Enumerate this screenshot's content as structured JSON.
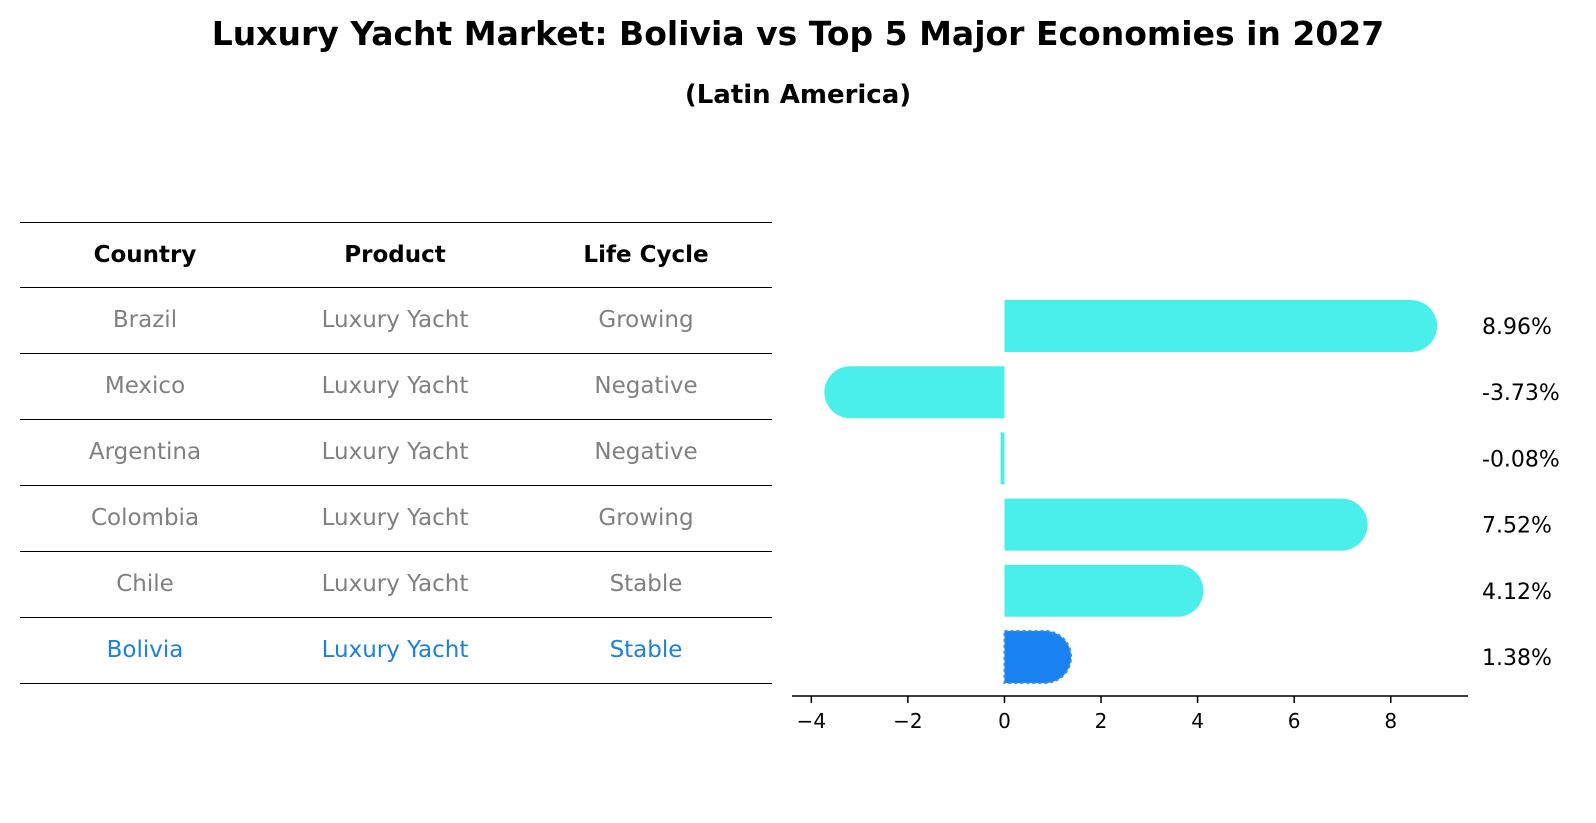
{
  "title": "Luxury Yacht Market: Bolivia vs Top 5 Major Economies in 2027",
  "subtitle": "(Latin America)",
  "table": {
    "headers": [
      "Country",
      "Product",
      "Life Cycle"
    ],
    "rows": [
      [
        "Brazil",
        "Luxury Yacht",
        "Growing"
      ],
      [
        "Mexico",
        "Luxury Yacht",
        "Negative"
      ],
      [
        "Argentina",
        "Luxury Yacht",
        "Negative"
      ],
      [
        "Colombia",
        "Luxury Yacht",
        "Growing"
      ],
      [
        "Chile",
        "Luxury Yacht",
        "Stable"
      ],
      [
        "Bolivia",
        "Luxury Yacht",
        "Stable"
      ]
    ],
    "highlight_row": 5,
    "highlight_color": "#1a82d9"
  },
  "chart_data": {
    "type": "bar",
    "orientation": "horizontal",
    "categories": [
      "Brazil",
      "Mexico",
      "Argentina",
      "Colombia",
      "Chile",
      "Bolivia"
    ],
    "values": [
      8.96,
      -3.73,
      -0.08,
      7.52,
      4.12,
      1.38
    ],
    "value_labels": [
      "8.96%",
      "-3.73%",
      "-0.08%",
      "7.52%",
      "4.12%",
      "1.38%"
    ],
    "xlim": [
      -4.4,
      9.6
    ],
    "xticks": [
      -4,
      -2,
      0,
      2,
      4,
      6,
      8
    ],
    "xtick_labels": [
      "−4",
      "−2",
      "0",
      "2",
      "4",
      "6",
      "8"
    ],
    "colors": {
      "default": "#4aeeea",
      "highlight": "#1982f0"
    },
    "highlight_index": 5,
    "grid": false
  }
}
